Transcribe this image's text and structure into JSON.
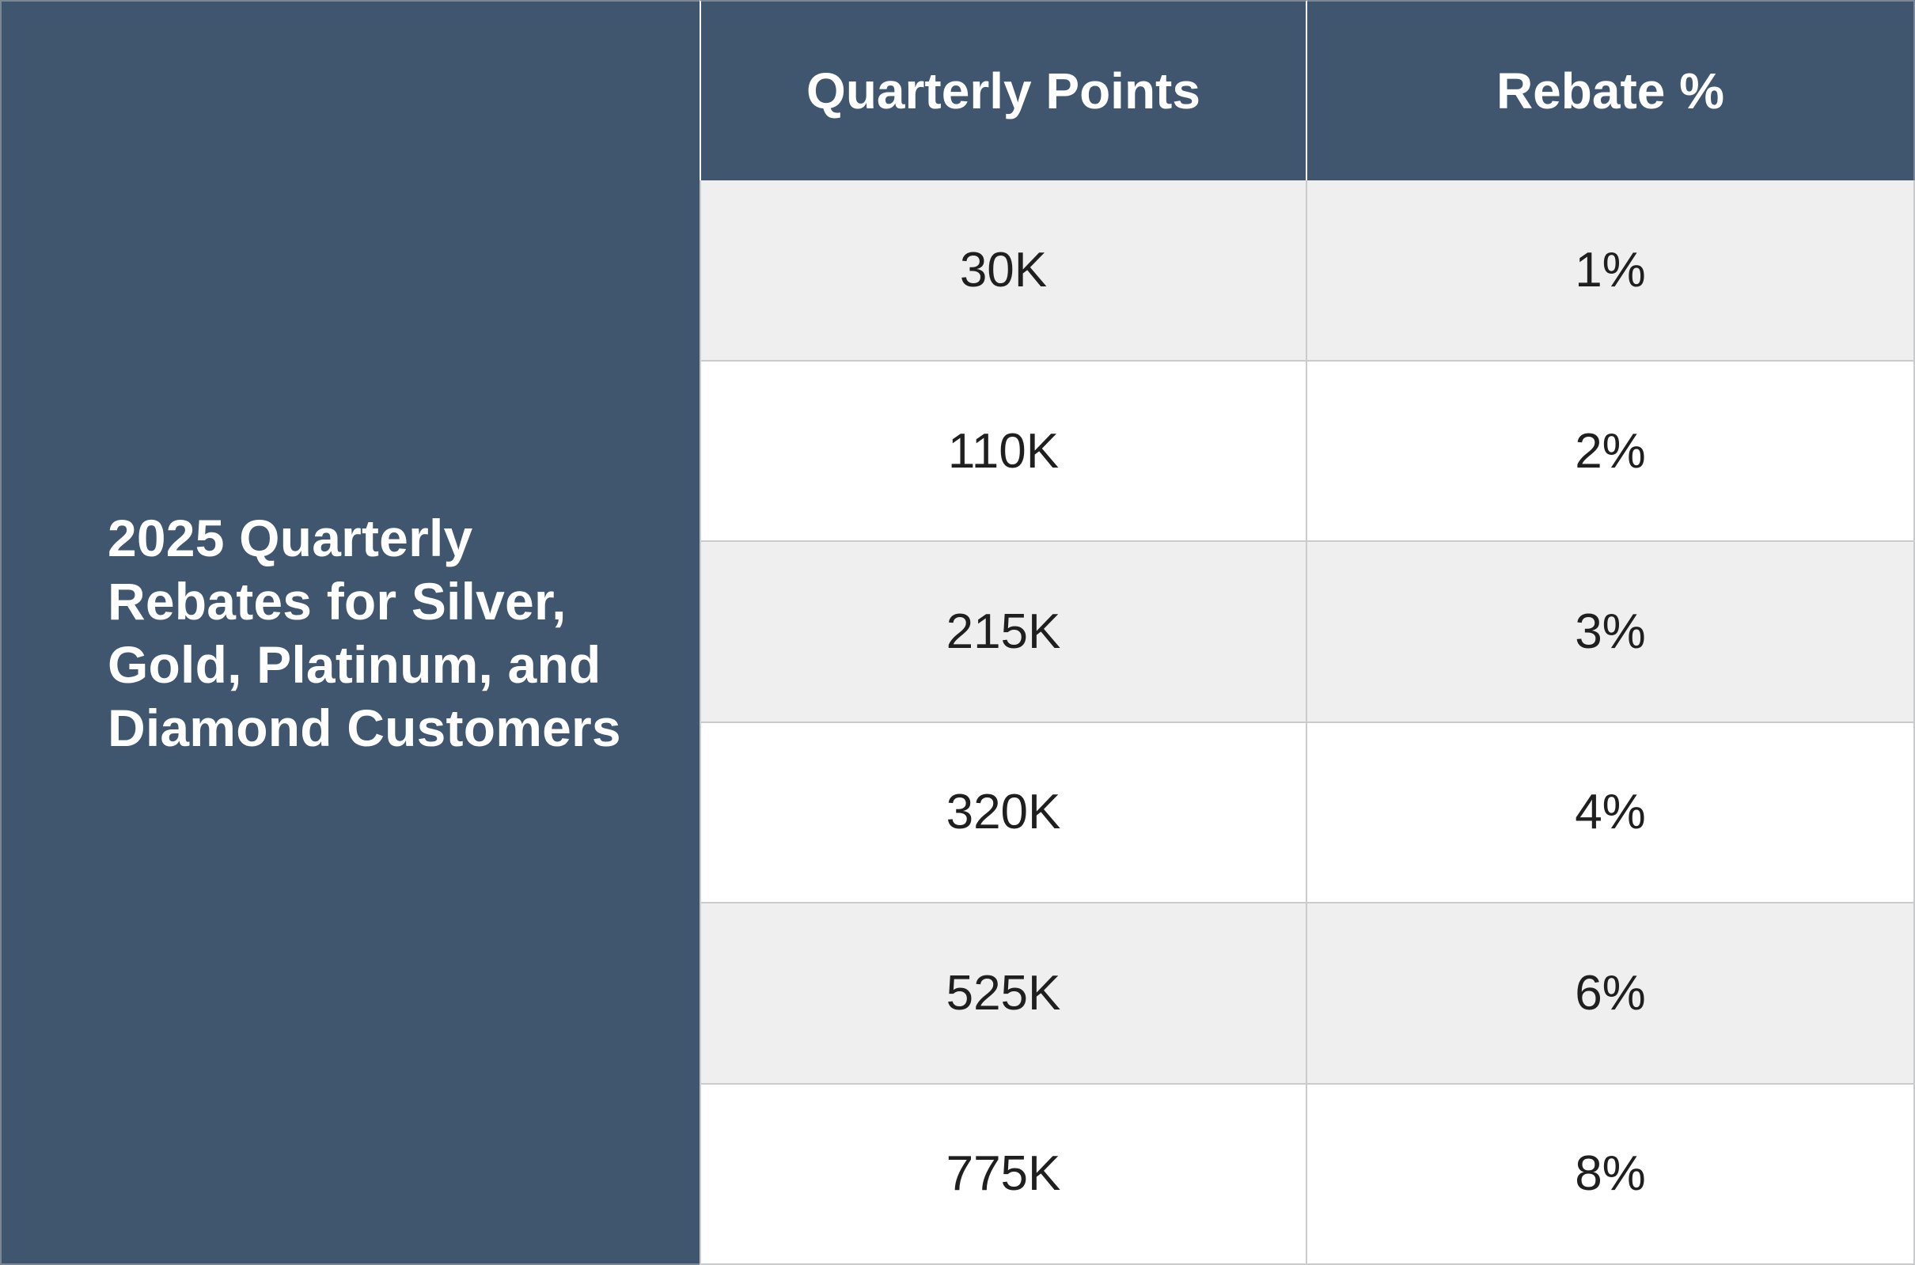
{
  "side_title": "2025 Quarterly\nRebates for Silver,\nGold, Platinum, and\nDiamond Customers",
  "table": {
    "headers": [
      "Quarterly Points",
      "Rebate %"
    ],
    "rows": [
      [
        "30K",
        "1%"
      ],
      [
        "110K",
        "2%"
      ],
      [
        "215K",
        "3%"
      ],
      [
        "320K",
        "4%"
      ],
      [
        "525K",
        "6%"
      ],
      [
        "775K",
        "8%"
      ]
    ]
  },
  "colors": {
    "header_bg": "#40566e",
    "stripe_bg": "#efefef",
    "row_bg": "#ffffff",
    "text": "#1f1f1f",
    "header_text": "#ffffff"
  }
}
